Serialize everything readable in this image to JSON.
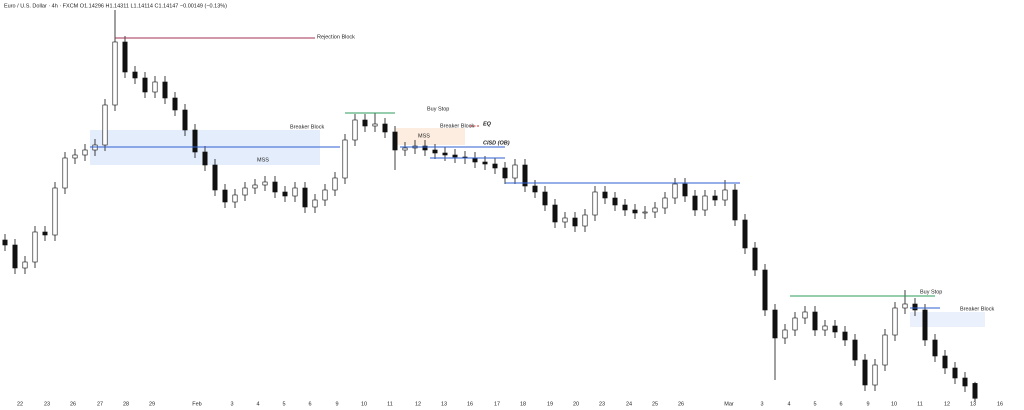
{
  "chart_data": {
    "type": "candlestick",
    "title": "Euro / U.S. Dollar · 4h · FXCM   O1.14296  H1.14311  L1.14114  C1.14147  −0.00149 (−0.13%)",
    "ylim": [
      1.1413,
      1.1813
    ],
    "up_color": "#ffffff",
    "down_color": "#111111",
    "candles": [
      [
        1.1573,
        1.1579,
        1.1562,
        1.1568
      ],
      [
        1.1568,
        1.1574,
        1.1539,
        1.1545
      ],
      [
        1.1545,
        1.1557,
        1.1539,
        1.1551
      ],
      [
        1.1551,
        1.1587,
        1.1545,
        1.1581
      ],
      [
        1.1581,
        1.1587,
        1.1572,
        1.1578
      ],
      [
        1.1578,
        1.1631,
        1.1572,
        1.1625
      ],
      [
        1.1625,
        1.1661,
        1.1619,
        1.1655
      ],
      [
        1.1655,
        1.1664,
        1.1649,
        1.1658
      ],
      [
        1.1658,
        1.1669,
        1.1652,
        1.1663
      ],
      [
        1.1663,
        1.1674,
        1.1657,
        1.1668
      ],
      [
        1.1668,
        1.1714,
        1.1662,
        1.1708
      ],
      [
        1.1708,
        1.1803,
        1.1702,
        1.1771
      ],
      [
        1.1771,
        1.1777,
        1.1735,
        1.1741
      ],
      [
        1.1741,
        1.1747,
        1.1729,
        1.1735
      ],
      [
        1.1735,
        1.1741,
        1.1715,
        1.1721
      ],
      [
        1.1721,
        1.1737,
        1.1715,
        1.1731
      ],
      [
        1.1731,
        1.1737,
        1.1709,
        1.1715
      ],
      [
        1.1715,
        1.1721,
        1.1697,
        1.1703
      ],
      [
        1.1703,
        1.1709,
        1.1677,
        1.1683
      ],
      [
        1.1683,
        1.1689,
        1.1655,
        1.1661
      ],
      [
        1.1661,
        1.1667,
        1.1642,
        1.1648
      ],
      [
        1.1648,
        1.1654,
        1.1617,
        1.1623
      ],
      [
        1.1623,
        1.1629,
        1.1605,
        1.1611
      ],
      [
        1.1611,
        1.1624,
        1.1605,
        1.1618
      ],
      [
        1.1618,
        1.1631,
        1.1612,
        1.1625
      ],
      [
        1.1625,
        1.1634,
        1.1619,
        1.1628
      ],
      [
        1.1628,
        1.1637,
        1.1622,
        1.1631
      ],
      [
        1.1631,
        1.1637,
        1.1615,
        1.1621
      ],
      [
        1.1621,
        1.1627,
        1.1611,
        1.1617
      ],
      [
        1.1617,
        1.1631,
        1.1611,
        1.1625
      ],
      [
        1.1625,
        1.1631,
        1.16,
        1.1606
      ],
      [
        1.1606,
        1.1619,
        1.16,
        1.1613
      ],
      [
        1.1613,
        1.1629,
        1.1607,
        1.1623
      ],
      [
        1.1623,
        1.1641,
        1.1617,
        1.1635
      ],
      [
        1.1635,
        1.1679,
        1.1629,
        1.1673
      ],
      [
        1.1673,
        1.1699,
        1.1667,
        1.1693
      ],
      [
        1.1693,
        1.1699,
        1.1681,
        1.1687
      ],
      [
        1.1687,
        1.17,
        1.1681,
        1.1689
      ],
      [
        1.1689,
        1.1695,
        1.1675,
        1.1681
      ],
      [
        1.1681,
        1.1687,
        1.1643,
        1.1663
      ],
      [
        1.1663,
        1.1671,
        1.1657,
        1.1665
      ],
      [
        1.1665,
        1.1673,
        1.1659,
        1.1667
      ],
      [
        1.1667,
        1.1673,
        1.1657,
        1.1663
      ],
      [
        1.1663,
        1.1669,
        1.1654,
        1.166
      ],
      [
        1.166,
        1.1666,
        1.1652,
        1.1658
      ],
      [
        1.1658,
        1.1664,
        1.165,
        1.1656
      ],
      [
        1.1656,
        1.1662,
        1.1649,
        1.1655
      ],
      [
        1.1655,
        1.1661,
        1.1645,
        1.1651
      ],
      [
        1.1651,
        1.1657,
        1.1643,
        1.1649
      ],
      [
        1.1649,
        1.1655,
        1.1639,
        1.1645
      ],
      [
        1.1645,
        1.1651,
        1.1629,
        1.1635
      ],
      [
        1.1635,
        1.1654,
        1.1629,
        1.1648
      ],
      [
        1.1648,
        1.1654,
        1.1621,
        1.1627
      ],
      [
        1.1627,
        1.1633,
        1.1615,
        1.1621
      ],
      [
        1.1621,
        1.1627,
        1.1602,
        1.1608
      ],
      [
        1.1608,
        1.1614,
        1.1585,
        1.1591
      ],
      [
        1.1591,
        1.1601,
        1.1585,
        1.1595
      ],
      [
        1.1595,
        1.1601,
        1.1581,
        1.1587
      ],
      [
        1.1587,
        1.1604,
        1.1581,
        1.1598
      ],
      [
        1.1598,
        1.1627,
        1.1592,
        1.1621
      ],
      [
        1.1621,
        1.1627,
        1.1609,
        1.1615
      ],
      [
        1.1615,
        1.1621,
        1.1602,
        1.1608
      ],
      [
        1.1608,
        1.1614,
        1.1597,
        1.1603
      ],
      [
        1.1603,
        1.1609,
        1.1594,
        1.16
      ],
      [
        1.16,
        1.1607,
        1.1594,
        1.1601
      ],
      [
        1.1601,
        1.1611,
        1.1595,
        1.1605
      ],
      [
        1.1605,
        1.1621,
        1.1599,
        1.1615
      ],
      [
        1.1615,
        1.1635,
        1.1609,
        1.1629
      ],
      [
        1.1629,
        1.1635,
        1.1611,
        1.1617
      ],
      [
        1.1617,
        1.1623,
        1.1597,
        1.1603
      ],
      [
        1.1603,
        1.1623,
        1.1597,
        1.1617
      ],
      [
        1.1617,
        1.1623,
        1.1607,
        1.1613
      ],
      [
        1.1613,
        1.1633,
        1.1607,
        1.1623
      ],
      [
        1.1623,
        1.1629,
        1.1587,
        1.1593
      ],
      [
        1.1593,
        1.1599,
        1.1559,
        1.1565
      ],
      [
        1.1565,
        1.1571,
        1.1537,
        1.1543
      ],
      [
        1.1543,
        1.1549,
        1.1497,
        1.1503
      ],
      [
        1.1503,
        1.1509,
        1.1433,
        1.1475
      ],
      [
        1.1475,
        1.1489,
        1.1469,
        1.1483
      ],
      [
        1.1483,
        1.1501,
        1.1477,
        1.1495
      ],
      [
        1.1495,
        1.1507,
        1.1489,
        1.1501
      ],
      [
        1.1501,
        1.1507,
        1.1477,
        1.1483
      ],
      [
        1.1483,
        1.1493,
        1.1477,
        1.1487
      ],
      [
        1.1487,
        1.1493,
        1.1475,
        1.1481
      ],
      [
        1.1481,
        1.1487,
        1.1467,
        1.1473
      ],
      [
        1.1473,
        1.1479,
        1.1447,
        1.1453
      ],
      [
        1.1453,
        1.1459,
        1.1422,
        1.1428
      ],
      [
        1.1428,
        1.1454,
        1.1422,
        1.1448
      ],
      [
        1.1448,
        1.1484,
        1.1442,
        1.1478
      ],
      [
        1.1478,
        1.1511,
        1.1472,
        1.1505
      ],
      [
        1.1505,
        1.1523,
        1.1499,
        1.1509
      ],
      [
        1.1509,
        1.1515,
        1.1497,
        1.1503
      ],
      [
        1.1503,
        1.1509,
        1.1467,
        1.1473
      ],
      [
        1.1473,
        1.1479,
        1.1451,
        1.1457
      ],
      [
        1.1457,
        1.1463,
        1.1439,
        1.1445
      ],
      [
        1.1445,
        1.1451,
        1.1429,
        1.1435
      ],
      [
        1.1435,
        1.1441,
        1.1421,
        1.1427
      ],
      [
        1.14296,
        1.14311,
        1.14114,
        1.14147
      ]
    ],
    "xticks": [
      {
        "value": 1.5,
        "label": "22"
      },
      {
        "value": 4.2,
        "label": "23"
      },
      {
        "value": 6.8,
        "label": "26"
      },
      {
        "value": 9.5,
        "label": "27"
      },
      {
        "value": 12.1,
        "label": "28"
      },
      {
        "value": 14.7,
        "label": "29"
      },
      {
        "value": 19.2,
        "label": "Feb"
      },
      {
        "value": 22.7,
        "label": "3"
      },
      {
        "value": 25.3,
        "label": "4"
      },
      {
        "value": 27.9,
        "label": "5"
      },
      {
        "value": 30.5,
        "label": "6"
      },
      {
        "value": 33.2,
        "label": "9"
      },
      {
        "value": 35.9,
        "label": "10"
      },
      {
        "value": 38.5,
        "label": "11"
      },
      {
        "value": 41.3,
        "label": "12"
      },
      {
        "value": 43.9,
        "label": "13"
      },
      {
        "value": 46.5,
        "label": "16"
      },
      {
        "value": 49.2,
        "label": "17"
      },
      {
        "value": 51.8,
        "label": "18"
      },
      {
        "value": 54.5,
        "label": "19"
      },
      {
        "value": 57.1,
        "label": "20"
      },
      {
        "value": 59.7,
        "label": "23"
      },
      {
        "value": 62.4,
        "label": "24"
      },
      {
        "value": 65,
        "label": "25"
      },
      {
        "value": 67.6,
        "label": "26"
      },
      {
        "value": 72.4,
        "label": "Mar"
      },
      {
        "value": 75.7,
        "label": "3"
      },
      {
        "value": 78.4,
        "label": "4"
      },
      {
        "value": 81,
        "label": "5"
      },
      {
        "value": 83.6,
        "label": "6"
      },
      {
        "value": 86.3,
        "label": "9"
      },
      {
        "value": 88.9,
        "label": "10"
      },
      {
        "value": 91.5,
        "label": "11"
      },
      {
        "value": 94.2,
        "label": "12"
      },
      {
        "value": 96.8,
        "label": "13"
      },
      {
        "value": 99.5,
        "label": "16"
      }
    ],
    "boxes": [
      {
        "high": 1.1683,
        "low": 1.1648,
        "from": 8.5,
        "to": 31.5,
        "color": "#dde8fb"
      },
      {
        "high": 1.1685,
        "low": 1.1668,
        "from": 39,
        "to": 46,
        "color": "#fde9d8"
      },
      {
        "high": 1.1501,
        "low": 1.1486,
        "from": 90.5,
        "to": 98,
        "color": "#e6eefb"
      }
    ],
    "lines": [
      {
        "value": 1.1775,
        "from": 11,
        "to": 31,
        "color": "#a03050"
      },
      {
        "value": 1.1666,
        "from": 8.5,
        "to": 33.5,
        "color": "#2f5fd0"
      },
      {
        "value": 1.17,
        "from": 34,
        "to": 39,
        "color": "#2e9e5b"
      },
      {
        "value": 1.1687,
        "from": 46.5,
        "to": 47.5,
        "color": "#d03030",
        "dash": true
      },
      {
        "value": 1.1666,
        "from": 39.5,
        "to": 50,
        "color": "#2f5fd0"
      },
      {
        "value": 1.1655,
        "from": 42.5,
        "to": 50,
        "color": "#2f5fd0"
      },
      {
        "value": 1.163,
        "from": 50,
        "to": 73.5,
        "color": "#2f5fd0"
      },
      {
        "value": 1.1517,
        "from": 78.5,
        "to": 93,
        "color": "#2e9e5b"
      },
      {
        "value": 1.1505,
        "from": 90.5,
        "to": 93.5,
        "color": "#2f5fd0"
      }
    ],
    "texts": [
      {
        "text": "Rejection Block",
        "value": 1.1776,
        "at": 31.2
      },
      {
        "text": "Breaker Block",
        "value": 1.1686,
        "at": 28.5
      },
      {
        "text": "MSS",
        "value": 1.1653,
        "at": 25.2
      },
      {
        "text": "Buy Stop",
        "value": 1.1704,
        "at": 42.2
      },
      {
        "text": "Breaker Block",
        "value": 1.1687,
        "at": 43.5
      },
      {
        "text": "EQ",
        "value": 1.1689,
        "at": 47.8,
        "bold": true
      },
      {
        "text": "MSS",
        "value": 1.1677,
        "at": 41.3
      },
      {
        "text": "CISD (OB)",
        "value": 1.167,
        "at": 47.8,
        "bold": true
      },
      {
        "text": "Buy Stop",
        "value": 1.1521,
        "at": 91.5
      },
      {
        "text": "Breaker Block",
        "value": 1.1504,
        "at": 95.5
      }
    ]
  }
}
